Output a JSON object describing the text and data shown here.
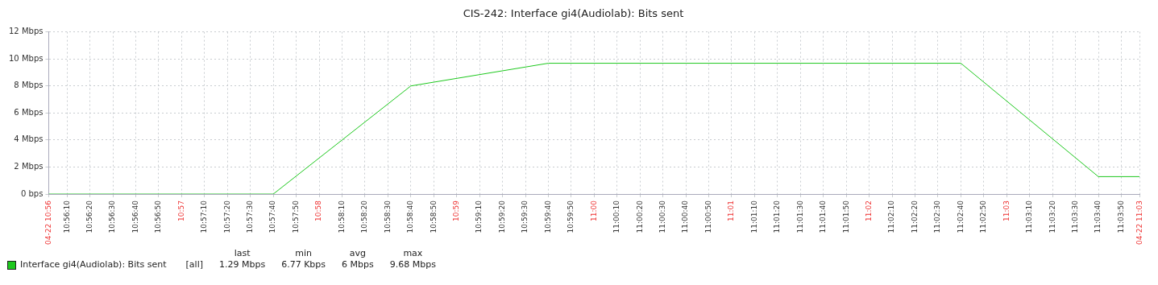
{
  "chart_data": {
    "type": "line",
    "title": "CIS-242: Interface gi4(Audiolab): Bits sent",
    "x": [
      10.93389,
      10.94444,
      10.96111,
      10.97778,
      10.99444,
      11.01111,
      11.02778,
      11.04444,
      11.06111,
      11.06611
    ],
    "series": [
      {
        "name": "Interface gi4(Audiolab): Bits sent",
        "color": "#1ec81e",
        "values": [
          0,
          0,
          0,
          8,
          9.68,
          9.68,
          9.68,
          9.68,
          1.29,
          1.29
        ]
      }
    ],
    "xlim": [
      10.93389,
      11.06611
    ],
    "xticks": [
      {
        "value": 10.93389,
        "label": "04-22 10:56"
      },
      {
        "value": 10.93611,
        "label": "10:56:10"
      },
      {
        "value": 10.93889,
        "label": "10:56:20"
      },
      {
        "value": 10.94167,
        "label": "10:56:30"
      },
      {
        "value": 10.94444,
        "label": "10:56:40"
      },
      {
        "value": 10.94722,
        "label": "10:56:50"
      },
      {
        "value": 10.95,
        "label": "10:57"
      },
      {
        "value": 10.95278,
        "label": "10:57:10"
      },
      {
        "value": 10.95556,
        "label": "10:57:20"
      },
      {
        "value": 10.95833,
        "label": "10:57:30"
      },
      {
        "value": 10.96111,
        "label": "10:57:40"
      },
      {
        "value": 10.96389,
        "label": "10:57:50"
      },
      {
        "value": 10.96667,
        "label": "10:58"
      },
      {
        "value": 10.96944,
        "label": "10:58:10"
      },
      {
        "value": 10.97222,
        "label": "10:58:20"
      },
      {
        "value": 10.975,
        "label": "10:58:30"
      },
      {
        "value": 10.97778,
        "label": "10:58:40"
      },
      {
        "value": 10.98056,
        "label": "10:58:50"
      },
      {
        "value": 10.98333,
        "label": "10:59"
      },
      {
        "value": 10.98611,
        "label": "10:59:10"
      },
      {
        "value": 10.98889,
        "label": "10:59:20"
      },
      {
        "value": 10.99167,
        "label": "10:59:30"
      },
      {
        "value": 10.99444,
        "label": "10:59:40"
      },
      {
        "value": 10.99722,
        "label": "10:59:50"
      },
      {
        "value": 11,
        "label": "11:00"
      },
      {
        "value": 11.00278,
        "label": "11:00:10"
      },
      {
        "value": 11.00556,
        "label": "11:00:20"
      },
      {
        "value": 11.00833,
        "label": "11:00:30"
      },
      {
        "value": 11.01111,
        "label": "11:00:40"
      },
      {
        "value": 11.01389,
        "label": "11:00:50"
      },
      {
        "value": 11.01667,
        "label": "11:01"
      },
      {
        "value": 11.01944,
        "label": "11:01:10"
      },
      {
        "value": 11.02222,
        "label": "11:01:20"
      },
      {
        "value": 11.025,
        "label": "11:01:30"
      },
      {
        "value": 11.02778,
        "label": "11:01:40"
      },
      {
        "value": 11.03056,
        "label": "11:01:50"
      },
      {
        "value": 11.03333,
        "label": "11:02"
      },
      {
        "value": 11.03611,
        "label": "11:02:10"
      },
      {
        "value": 11.03889,
        "label": "11:02:20"
      },
      {
        "value": 11.04167,
        "label": "11:02:30"
      },
      {
        "value": 11.04444,
        "label": "11:02:40"
      },
      {
        "value": 11.04722,
        "label": "11:02:50"
      },
      {
        "value": 11.05,
        "label": "11:03"
      },
      {
        "value": 11.05278,
        "label": "11:03:10"
      },
      {
        "value": 11.05556,
        "label": "11:03:20"
      },
      {
        "value": 11.05833,
        "label": "11:03:30"
      },
      {
        "value": 11.06111,
        "label": "11:03:40"
      },
      {
        "value": 11.06389,
        "label": "11:03:50"
      },
      {
        "value": 11.06611,
        "label": "04-22 11:03"
      }
    ],
    "ylim": [
      0,
      12
    ],
    "yticks": [
      {
        "value": 0,
        "label": "0 bps"
      },
      {
        "value": 2,
        "label": "2 Mbps"
      },
      {
        "value": 4,
        "label": "4 Mbps"
      },
      {
        "value": 6,
        "label": "6 Mbps"
      },
      {
        "value": 8,
        "label": "8 Mbps"
      },
      {
        "value": 10,
        "label": "10 Mbps"
      },
      {
        "value": 12,
        "label": "12 Mbps"
      }
    ],
    "grid": true,
    "legend": "bottom left",
    "marker": "none",
    "line_style": "solid",
    "annotations": [
      "[all]",
      "last",
      "min",
      "avg",
      "max",
      "1.29 Mbps",
      "6.77 Kbps",
      "6 Mbps",
      "9.68 Mbps"
    ]
  }
}
